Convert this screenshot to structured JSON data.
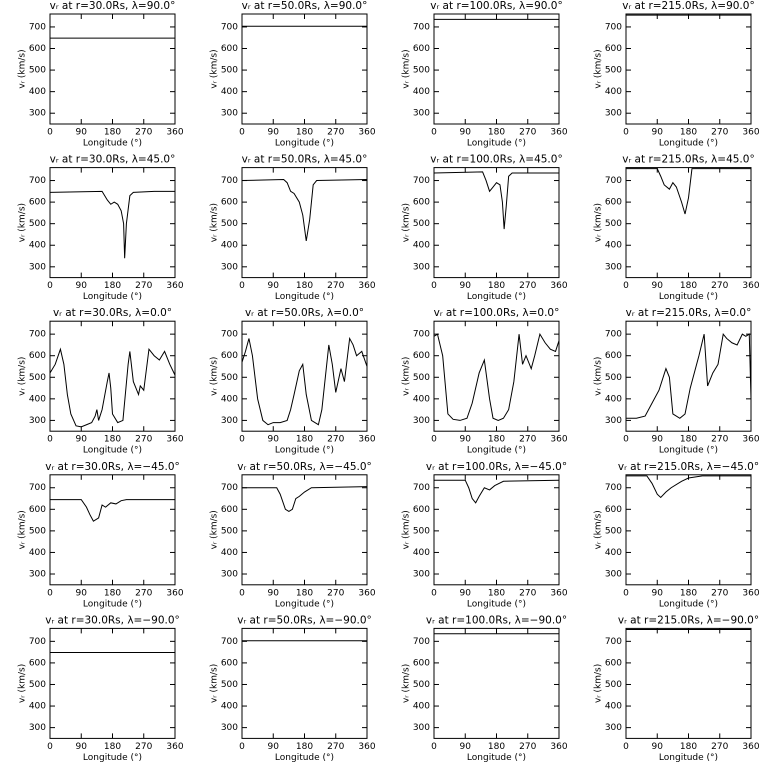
{
  "chart_data": [
    {
      "type": "line",
      "title": "vᵣ at r=30.0Rs, λ=90.0°",
      "xlabel": "Longitude (°)",
      "ylabel": "vᵣ (km/s)",
      "x": [
        0,
        360
      ],
      "values": [
        648,
        648
      ],
      "xlim": [
        0,
        360
      ],
      "ylim": [
        250,
        760
      ],
      "xticks": [
        0,
        90,
        180,
        270,
        360
      ],
      "yticks": [
        300,
        400,
        500,
        600,
        700
      ]
    },
    {
      "type": "line",
      "title": "vᵣ at r=50.0Rs, λ=90.0°",
      "xlabel": "Longitude (°)",
      "ylabel": "vᵣ (km/s)",
      "x": [
        0,
        360
      ],
      "values": [
        703,
        703
      ],
      "xlim": [
        0,
        360
      ],
      "ylim": [
        250,
        760
      ],
      "xticks": [
        0,
        90,
        180,
        270,
        360
      ],
      "yticks": [
        300,
        400,
        500,
        600,
        700
      ]
    },
    {
      "type": "line",
      "title": "vᵣ at r=100.0Rs, λ=90.0°",
      "xlabel": "Longitude (°)",
      "ylabel": "vᵣ (km/s)",
      "x": [
        0,
        360
      ],
      "values": [
        735,
        735
      ],
      "xlim": [
        0,
        360
      ],
      "ylim": [
        250,
        760
      ],
      "xticks": [
        0,
        90,
        180,
        270,
        360
      ],
      "yticks": [
        300,
        400,
        500,
        600,
        700
      ]
    },
    {
      "type": "line",
      "title": "vᵣ at r=215.0Rs, λ=90.0°",
      "xlabel": "Longitude (°)",
      "ylabel": "vᵣ (km/s)",
      "x": [
        0,
        360
      ],
      "values": [
        755,
        755
      ],
      "xlim": [
        0,
        360
      ],
      "ylim": [
        250,
        760
      ],
      "xticks": [
        0,
        90,
        180,
        270,
        360
      ],
      "yticks": [
        300,
        400,
        500,
        600,
        700
      ]
    },
    {
      "type": "line",
      "title": "vᵣ at r=30.0Rs, λ=45.0°",
      "xlabel": "Longitude (°)",
      "ylabel": "vᵣ (km/s)",
      "x": [
        0,
        150,
        165,
        175,
        185,
        195,
        205,
        212,
        215,
        220,
        230,
        240,
        300,
        360
      ],
      "values": [
        645,
        650,
        610,
        590,
        600,
        590,
        560,
        500,
        340,
        500,
        630,
        645,
        650,
        650
      ],
      "xlim": [
        0,
        360
      ],
      "ylim": [
        250,
        760
      ],
      "xticks": [
        0,
        90,
        180,
        270,
        360
      ],
      "yticks": [
        300,
        400,
        500,
        600,
        700
      ]
    },
    {
      "type": "line",
      "title": "vᵣ at r=50.0Rs, λ=45.0°",
      "xlabel": "Longitude (°)",
      "ylabel": "vᵣ (km/s)",
      "x": [
        0,
        120,
        130,
        140,
        150,
        165,
        175,
        185,
        195,
        205,
        215,
        360
      ],
      "values": [
        700,
        705,
        690,
        650,
        640,
        600,
        540,
        420,
        520,
        680,
        700,
        705
      ],
      "xlim": [
        0,
        360
      ],
      "ylim": [
        250,
        760
      ],
      "xticks": [
        0,
        90,
        180,
        270,
        360
      ],
      "yticks": [
        300,
        400,
        500,
        600,
        700
      ]
    },
    {
      "type": "line",
      "title": "vᵣ at r=100.0Rs, λ=45.0°",
      "xlabel": "Longitude (°)",
      "ylabel": "vᵣ (km/s)",
      "x": [
        0,
        140,
        150,
        160,
        170,
        180,
        190,
        197,
        202,
        208,
        215,
        225,
        360
      ],
      "values": [
        735,
        740,
        700,
        650,
        670,
        690,
        680,
        600,
        475,
        580,
        720,
        735,
        735
      ],
      "xlim": [
        0,
        360
      ],
      "ylim": [
        250,
        760
      ],
      "xticks": [
        0,
        90,
        180,
        270,
        360
      ],
      "yticks": [
        300,
        400,
        500,
        600,
        700
      ]
    },
    {
      "type": "line",
      "title": "vᵣ at r=215.0Rs, λ=45.0°",
      "xlabel": "Longitude (°)",
      "ylabel": "vᵣ (km/s)",
      "x": [
        0,
        90,
        100,
        110,
        125,
        135,
        145,
        160,
        170,
        180,
        190,
        360
      ],
      "values": [
        755,
        755,
        720,
        680,
        660,
        690,
        670,
        600,
        545,
        620,
        755,
        755
      ],
      "xlim": [
        0,
        360
      ],
      "ylim": [
        250,
        760
      ],
      "xticks": [
        0,
        90,
        180,
        270,
        360
      ],
      "yticks": [
        300,
        400,
        500,
        600,
        700
      ]
    },
    {
      "type": "line",
      "title": "vᵣ at r=30.0Rs, λ=0.0°",
      "xlabel": "Longitude (°)",
      "ylabel": "vᵣ (km/s)",
      "x": [
        0,
        15,
        30,
        40,
        50,
        60,
        75,
        90,
        105,
        120,
        130,
        135,
        140,
        150,
        165,
        170,
        175,
        180,
        195,
        210,
        225,
        230,
        240,
        255,
        260,
        270,
        285,
        300,
        315,
        330,
        345,
        360
      ],
      "values": [
        520,
        560,
        630,
        560,
        420,
        330,
        275,
        270,
        280,
        290,
        320,
        350,
        300,
        350,
        480,
        520,
        450,
        330,
        290,
        300,
        560,
        620,
        480,
        420,
        460,
        440,
        630,
        600,
        580,
        620,
        560,
        510
      ],
      "xlim": [
        0,
        360
      ],
      "ylim": [
        250,
        760
      ],
      "xticks": [
        0,
        90,
        180,
        270,
        360
      ],
      "yticks": [
        300,
        400,
        500,
        600,
        700
      ]
    },
    {
      "type": "line",
      "title": "vᵣ at r=50.0Rs, λ=0.0°",
      "xlabel": "Longitude (°)",
      "ylabel": "vᵣ (km/s)",
      "x": [
        0,
        10,
        20,
        30,
        45,
        60,
        75,
        90,
        110,
        130,
        140,
        150,
        165,
        175,
        185,
        200,
        220,
        230,
        240,
        250,
        260,
        270,
        285,
        295,
        310,
        320,
        330,
        345,
        360
      ],
      "values": [
        570,
        620,
        680,
        600,
        400,
        300,
        280,
        290,
        290,
        300,
        350,
        420,
        530,
        560,
        420,
        300,
        280,
        350,
        500,
        650,
        560,
        430,
        540,
        480,
        680,
        650,
        600,
        620,
        550
      ],
      "xlim": [
        0,
        360
      ],
      "ylim": [
        250,
        760
      ],
      "xticks": [
        0,
        90,
        180,
        270,
        360
      ],
      "yticks": [
        300,
        400,
        500,
        600,
        700
      ]
    },
    {
      "type": "line",
      "title": "vᵣ at r=100.0Rs, λ=0.0°",
      "xlabel": "Longitude (°)",
      "ylabel": "vᵣ (km/s)",
      "x": [
        0,
        10,
        25,
        40,
        55,
        75,
        95,
        110,
        130,
        145,
        160,
        170,
        185,
        200,
        215,
        230,
        245,
        255,
        265,
        280,
        290,
        305,
        320,
        335,
        350,
        360
      ],
      "values": [
        690,
        700,
        600,
        330,
        305,
        300,
        310,
        380,
        520,
        580,
        400,
        310,
        300,
        310,
        350,
        480,
        700,
        560,
        600,
        540,
        600,
        700,
        660,
        630,
        620,
        670
      ],
      "xlim": [
        0,
        360
      ],
      "ylim": [
        250,
        760
      ],
      "xticks": [
        0,
        90,
        180,
        270,
        360
      ],
      "yticks": [
        300,
        400,
        500,
        600,
        700
      ]
    },
    {
      "type": "line",
      "title": "vᵣ at r=215.0Rs, λ=0.0°",
      "xlabel": "Longitude (°)",
      "ylabel": "vᵣ (km/s)",
      "x": [
        0,
        30,
        55,
        75,
        95,
        115,
        125,
        135,
        155,
        170,
        185,
        210,
        225,
        235,
        250,
        265,
        280,
        290,
        305,
        320,
        335,
        345,
        355,
        360
      ],
      "values": [
        310,
        310,
        320,
        380,
        440,
        540,
        500,
        330,
        310,
        330,
        450,
        600,
        700,
        460,
        520,
        560,
        700,
        680,
        660,
        650,
        700,
        690,
        700,
        400
      ],
      "xlim": [
        0,
        360
      ],
      "ylim": [
        250,
        760
      ],
      "xticks": [
        0,
        90,
        180,
        270,
        360
      ],
      "yticks": [
        300,
        400,
        500,
        600,
        700
      ]
    },
    {
      "type": "line",
      "title": "vᵣ at r=30.0Rs, λ=−45.0°",
      "xlabel": "Longitude (°)",
      "ylabel": "vᵣ (km/s)",
      "x": [
        0,
        90,
        105,
        115,
        125,
        140,
        150,
        160,
        175,
        190,
        205,
        220,
        360
      ],
      "values": [
        645,
        645,
        610,
        575,
        545,
        560,
        620,
        610,
        630,
        625,
        640,
        645,
        645
      ],
      "xlim": [
        0,
        360
      ],
      "ylim": [
        250,
        760
      ],
      "xticks": [
        0,
        90,
        180,
        270,
        360
      ],
      "yticks": [
        300,
        400,
        500,
        600,
        700
      ]
    },
    {
      "type": "line",
      "title": "vᵣ at r=50.0Rs, λ=−45.0°",
      "xlabel": "Longitude (°)",
      "ylabel": "vᵣ (km/s)",
      "x": [
        0,
        100,
        110,
        125,
        135,
        145,
        155,
        165,
        180,
        200,
        360
      ],
      "values": [
        700,
        700,
        670,
        600,
        590,
        600,
        650,
        660,
        680,
        700,
        705
      ],
      "xlim": [
        0,
        360
      ],
      "ylim": [
        250,
        760
      ],
      "xticks": [
        0,
        90,
        180,
        270,
        360
      ],
      "yticks": [
        300,
        400,
        500,
        600,
        700
      ]
    },
    {
      "type": "line",
      "title": "vᵣ at r=100.0Rs, λ=−45.0°",
      "xlabel": "Longitude (°)",
      "ylabel": "vᵣ (km/s)",
      "x": [
        0,
        90,
        100,
        110,
        120,
        130,
        145,
        160,
        175,
        200,
        360
      ],
      "values": [
        735,
        735,
        700,
        650,
        630,
        660,
        700,
        690,
        710,
        730,
        735
      ],
      "xlim": [
        0,
        360
      ],
      "ylim": [
        250,
        760
      ],
      "xticks": [
        0,
        90,
        180,
        270,
        360
      ],
      "yticks": [
        300,
        400,
        500,
        600,
        700
      ]
    },
    {
      "type": "line",
      "title": "vᵣ at r=215.0Rs, λ=−45.0°",
      "xlabel": "Longitude (°)",
      "ylabel": "vᵣ (km/s)",
      "x": [
        0,
        60,
        75,
        90,
        100,
        115,
        130,
        160,
        180,
        220,
        360
      ],
      "values": [
        755,
        755,
        720,
        670,
        655,
        680,
        700,
        730,
        745,
        755,
        755
      ],
      "xlim": [
        0,
        360
      ],
      "ylim": [
        250,
        760
      ],
      "xticks": [
        0,
        90,
        180,
        270,
        360
      ],
      "yticks": [
        300,
        400,
        500,
        600,
        700
      ]
    },
    {
      "type": "line",
      "title": "vᵣ at r=30.0Rs, λ=−90.0°",
      "xlabel": "Longitude (°)",
      "ylabel": "vᵣ (km/s)",
      "x": [
        0,
        360
      ],
      "values": [
        648,
        648
      ],
      "xlim": [
        0,
        360
      ],
      "ylim": [
        250,
        760
      ],
      "xticks": [
        0,
        90,
        180,
        270,
        360
      ],
      "yticks": [
        300,
        400,
        500,
        600,
        700
      ]
    },
    {
      "type": "line",
      "title": "vᵣ at r=50.0Rs, λ=−90.0°",
      "xlabel": "Longitude (°)",
      "ylabel": "vᵣ (km/s)",
      "x": [
        0,
        360
      ],
      "values": [
        703,
        703
      ],
      "xlim": [
        0,
        360
      ],
      "ylim": [
        250,
        760
      ],
      "xticks": [
        0,
        90,
        180,
        270,
        360
      ],
      "yticks": [
        300,
        400,
        500,
        600,
        700
      ]
    },
    {
      "type": "line",
      "title": "vᵣ at r=100.0Rs, λ=−90.0°",
      "xlabel": "Longitude (°)",
      "ylabel": "vᵣ (km/s)",
      "x": [
        0,
        360
      ],
      "values": [
        735,
        735
      ],
      "xlim": [
        0,
        360
      ],
      "ylim": [
        250,
        760
      ],
      "xticks": [
        0,
        90,
        180,
        270,
        360
      ],
      "yticks": [
        300,
        400,
        500,
        600,
        700
      ]
    },
    {
      "type": "line",
      "title": "vᵣ at r=215.0Rs, λ=−90.0°",
      "xlabel": "Longitude (°)",
      "ylabel": "vᵣ (km/s)",
      "x": [
        0,
        360
      ],
      "values": [
        755,
        755
      ],
      "xlim": [
        0,
        360
      ],
      "ylim": [
        250,
        760
      ],
      "xticks": [
        0,
        90,
        180,
        270,
        360
      ],
      "yticks": [
        300,
        400,
        500,
        600,
        700
      ]
    }
  ]
}
